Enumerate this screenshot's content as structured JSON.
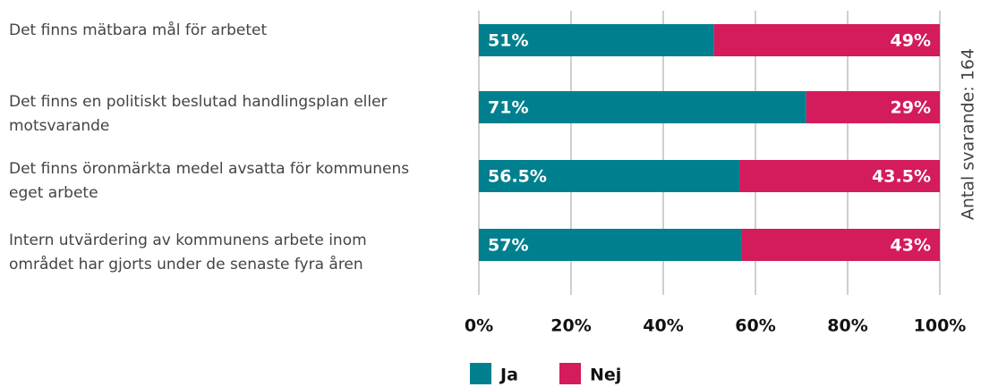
{
  "chart_data": {
    "type": "stacked-bar",
    "categories": [
      "Det finns mätbara mål för arbetet",
      "Det finns en politiskt beslutad handlingsplan eller motsvarande",
      "Det finns öronmärkta medel avsatta för kommunens eget arbete",
      "Intern utvärdering av kommunens arbete inom området har gjorts under de senaste fyra åren"
    ],
    "series": [
      {
        "name": "Ja",
        "color": "#00808f",
        "values": [
          51,
          71,
          56.5,
          57
        ],
        "value_labels": [
          "51%",
          "71%",
          "56.5%",
          "57%"
        ]
      },
      {
        "name": "Nej",
        "color": "#d41b5c",
        "values": [
          49,
          29,
          43.5,
          43
        ],
        "value_labels": [
          "49%",
          "29%",
          "43.5%",
          "43%"
        ]
      }
    ],
    "xlim": [
      0,
      100
    ],
    "xticks": [
      {
        "value": 0,
        "label": "0%"
      },
      {
        "value": 20,
        "label": "20%"
      },
      {
        "value": 40,
        "label": "40%"
      },
      {
        "value": 60,
        "label": "60%"
      },
      {
        "value": 80,
        "label": "80%"
      },
      {
        "value": 100,
        "label": "100%"
      }
    ],
    "grid": true,
    "annotation": "Antal svarande: 164",
    "legend": "bottom"
  }
}
